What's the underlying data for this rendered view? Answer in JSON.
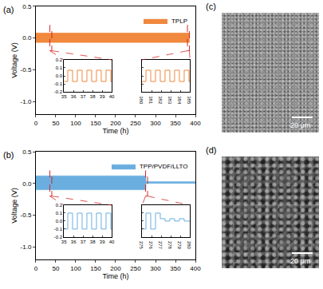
{
  "chart_data": [
    {
      "type": "line",
      "panel_label": "(a)",
      "x_label": "Time (h)",
      "y_label": "Voltage (V)",
      "xlim": [
        0,
        400
      ],
      "xticks": [
        0,
        50,
        100,
        150,
        200,
        250,
        300,
        350,
        400
      ],
      "ylim": [
        -1.2,
        0.5
      ],
      "yticks": [
        {
          "value": -1,
          "label": "-1.0"
        },
        -0.5,
        {
          "value": 0,
          "label": "0.0"
        },
        0.5
      ],
      "legend": "upper right",
      "series": [
        {
          "name": "TPLP",
          "color": "#f0883e",
          "x": [
            0,
            385
          ],
          "upper": [
            0.08,
            0.08
          ],
          "lower": [
            -0.07,
            -0.07
          ]
        }
      ],
      "insets": [
        {
          "xlim": [
            35,
            40
          ],
          "xticks": [
            35,
            36,
            37,
            38,
            39,
            40
          ],
          "ylim": [
            -0.2,
            0.2
          ],
          "yticks": [
            -0.2,
            -0.1,
            {
              "value": 0,
              "label": "0.0"
            },
            0.1,
            0.2
          ],
          "x": [
            35,
            35.4,
            35.4,
            35.9,
            35.9,
            36.4,
            36.4,
            36.9,
            36.9,
            37.4,
            37.4,
            37.9,
            37.9,
            38.4,
            38.4,
            38.9,
            38.9,
            39.4,
            39.4,
            39.9,
            39.9,
            40
          ],
          "values": [
            -0.07,
            -0.07,
            0.07,
            0.07,
            -0.07,
            -0.07,
            0.07,
            0.07,
            -0.07,
            -0.07,
            0.07,
            0.07,
            -0.07,
            -0.07,
            0.07,
            0.07,
            -0.07,
            -0.07,
            0.07,
            0.07,
            -0.07,
            -0.07
          ]
        },
        {
          "xlim": [
            380,
            385
          ],
          "xticks": [
            380,
            381,
            382,
            383,
            384,
            385
          ],
          "ylim": [
            -0.2,
            0.2
          ],
          "yticks": [
            -0.2,
            -0.1,
            {
              "value": 0,
              "label": "0.0"
            },
            0.1,
            0.2
          ],
          "tick_labels": "x",
          "x": [
            380,
            380.4,
            380.4,
            380.9,
            380.9,
            381.4,
            381.4,
            381.9,
            381.9,
            382.4,
            382.4,
            382.9,
            382.9,
            383.4,
            383.4,
            383.9,
            383.9,
            384.4,
            384.4,
            384.9,
            384.9,
            385
          ],
          "values": [
            -0.07,
            -0.07,
            0.07,
            0.07,
            -0.07,
            -0.07,
            0.07,
            0.07,
            -0.07,
            -0.07,
            0.07,
            0.07,
            -0.07,
            -0.07,
            0.07,
            0.07,
            -0.07,
            -0.07,
            0.07,
            0.07,
            -0.07,
            -0.07
          ]
        }
      ]
    },
    {
      "type": "line",
      "panel_label": "(b)",
      "x_label": "Time (h)",
      "y_label": "Voltage (V)",
      "xlim": [
        0,
        400
      ],
      "xticks": [
        0,
        50,
        100,
        150,
        200,
        250,
        300,
        350,
        400
      ],
      "ylim": [
        -1.2,
        0.5
      ],
      "yticks": [
        {
          "value": -1,
          "label": "-1.0"
        },
        -0.5,
        {
          "value": 0,
          "label": "0.0"
        },
        0.5
      ],
      "legend": "upper right",
      "series": [
        {
          "name": "TPP/PVDF/LLTO",
          "color": "#6aaee0",
          "x": [
            0,
            276,
            276,
            400
          ],
          "upper": [
            0.12,
            0.12,
            0.03,
            0.03
          ],
          "lower": [
            -0.1,
            -0.1,
            0.0,
            0.0
          ]
        }
      ],
      "insets": [
        {
          "xlim": [
            35,
            40
          ],
          "xticks": [
            35,
            36,
            37,
            38,
            39,
            40
          ],
          "ylim": [
            -0.2,
            0.2
          ],
          "yticks": [
            -0.2,
            -0.1,
            {
              "value": 0,
              "label": "0.0"
            },
            0.1,
            0.2
          ],
          "x": [
            35,
            35.4,
            35.4,
            35.9,
            35.9,
            36.4,
            36.4,
            36.9,
            36.9,
            37.4,
            37.4,
            37.9,
            37.9,
            38.4,
            38.4,
            38.9,
            38.9,
            39.4,
            39.4,
            39.9,
            39.9,
            40
          ],
          "values": [
            -0.1,
            -0.1,
            0.1,
            0.1,
            -0.1,
            -0.1,
            0.1,
            0.1,
            -0.1,
            -0.1,
            0.1,
            0.1,
            -0.1,
            -0.1,
            0.1,
            0.1,
            -0.1,
            -0.1,
            0.1,
            0.1,
            -0.1,
            -0.1
          ]
        },
        {
          "xlim": [
            275,
            280
          ],
          "xticks": [
            275,
            276,
            277,
            278,
            279,
            280
          ],
          "ylim": [
            -0.2,
            0.2
          ],
          "yticks": [
            -0.2,
            -0.1,
            {
              "value": 0,
              "label": "0.0"
            },
            0.1,
            0.2
          ],
          "tick_labels": "x",
          "x": [
            275,
            275.4,
            275.4,
            275.9,
            275.9,
            276.4,
            276.4,
            276.9,
            276.9,
            277.4,
            277.4,
            277.9,
            277.9,
            278.4,
            278.4,
            278.9,
            278.9,
            279.4,
            279.4,
            280
          ],
          "values": [
            -0.1,
            -0.1,
            0.1,
            0.1,
            -0.1,
            -0.1,
            0.1,
            0.1,
            0.03,
            0.03,
            0.0,
            0.0,
            0.03,
            0.03,
            0.0,
            0.0,
            0.03,
            0.03,
            0.0,
            0.0
          ]
        }
      ]
    }
  ],
  "images": [
    {
      "panel_label": "(c)",
      "scale_bar": "20 μm"
    },
    {
      "panel_label": "(d)",
      "scale_bar": "20 μm"
    }
  ]
}
